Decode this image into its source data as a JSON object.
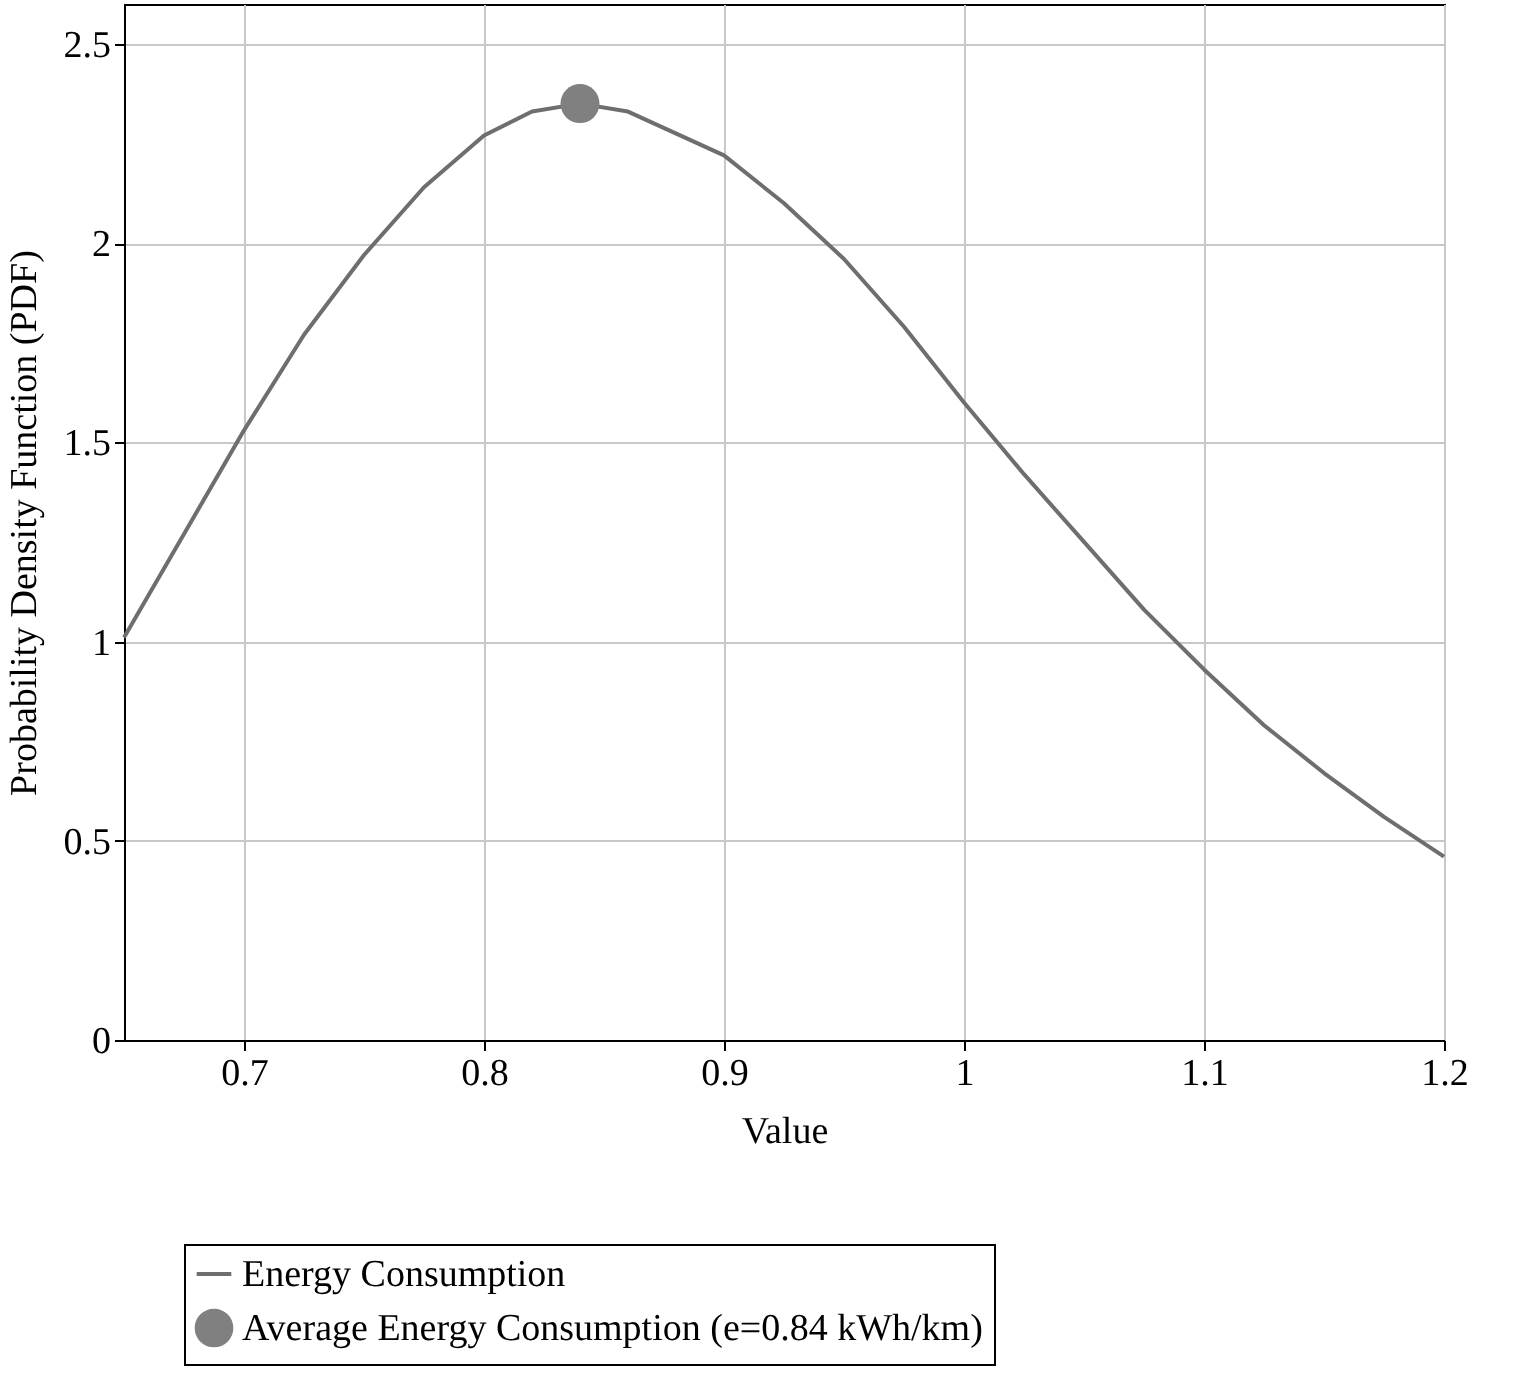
{
  "chart_data": {
    "type": "line",
    "xlabel": "Value",
    "ylabel": "Probability Density Function (PDF)",
    "x": [
      0.65,
      0.675,
      0.7,
      0.725,
      0.75,
      0.775,
      0.8,
      0.82,
      0.84,
      0.86,
      0.9,
      0.925,
      0.95,
      0.975,
      1.0,
      1.025,
      1.05,
      1.075,
      1.1,
      1.125,
      1.15,
      1.175,
      1.2
    ],
    "series": [
      {
        "name": "Energy Consumption",
        "color": "#6e6e6e",
        "marker": "none",
        "line_style": "solid",
        "values": [
          1.01,
          1.27,
          1.53,
          1.77,
          1.97,
          2.14,
          2.27,
          2.33,
          2.35,
          2.33,
          2.22,
          2.1,
          1.96,
          1.79,
          1.6,
          1.42,
          1.25,
          1.08,
          0.93,
          0.79,
          0.67,
          0.56,
          0.46
        ]
      },
      {
        "name": "Average Energy Consumption (e=0.84 kWh/km)",
        "type": "scatter",
        "color": "#808080",
        "marker": "circle",
        "x": [
          0.84
        ],
        "values": [
          2.35
        ]
      }
    ],
    "xlim": [
      0.65,
      1.2
    ],
    "xticks": [
      0.7,
      0.8,
      0.9,
      1,
      1.1,
      1.2
    ],
    "ylim": [
      0,
      2.6
    ],
    "yticks": [
      0,
      0.5,
      1,
      1.5,
      2,
      2.5
    ],
    "grid": true,
    "legend": "bottom"
  }
}
